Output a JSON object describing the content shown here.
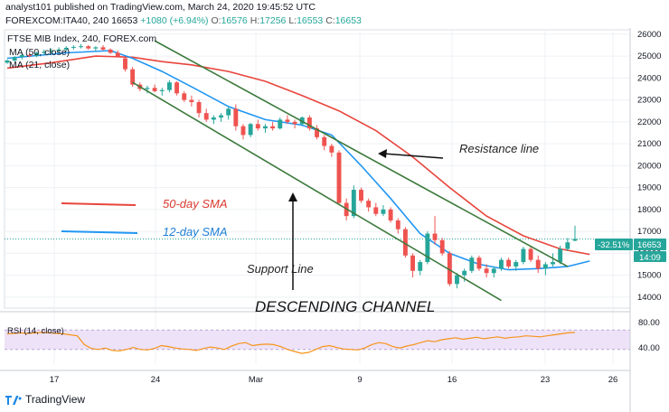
{
  "header": {
    "line1": "analyst101 published on TradingView.com, March 24, 2020 19:45:52 UTC",
    "symbol": "FOREXCOM:ITA40, 240",
    "price": "16653",
    "change": "+1080 (+6.94%)",
    "o_label": "O:",
    "o_value": "16576",
    "h_label": "H:",
    "h_value": "17256",
    "l_label": "L:",
    "l_value": "16553",
    "c_label": "C:",
    "c_value": "16653"
  },
  "legend": {
    "title": "FTSE MIB Index, 240, FOREX.com",
    "ma1": "MA (50, close)",
    "ma2": "MA (21, close)"
  },
  "annotations": {
    "resistance": "Resistance line",
    "support": "Support Line",
    "sma50": "50-day SMA",
    "sma12": "12-day SMA",
    "channel": "DESCENDING CHANNEL"
  },
  "price_tags": {
    "pct": "-32.51%",
    "last": "16653",
    "timer": "14:09"
  },
  "rsi": {
    "label": "RSI (14, close)",
    "ticks": [
      "80.00",
      "40.00"
    ]
  },
  "footer": {
    "brand": "TradingView"
  },
  "colors": {
    "up": "#26a69a",
    "down": "#ef5350",
    "ma50": "#e8453c",
    "ma21": "#2196f3",
    "channel": "#3d7a3d",
    "rsi_line": "#f7931a",
    "rsi_band": "#ede2f7"
  },
  "chart_data": {
    "type": "candlestick",
    "title": "FTSE MIB Index, 240, FOREX.com",
    "y_ticks": [
      14000,
      15000,
      16000,
      17000,
      18000,
      19000,
      20000,
      21000,
      22000,
      23000,
      24000,
      25000,
      26000
    ],
    "ylim": [
      13500,
      26200
    ],
    "x_ticks": [
      "17",
      "24",
      "Mar",
      "9",
      "16",
      "23",
      "26"
    ],
    "last_price": 16653,
    "candles": [
      [
        24700,
        24850,
        24650,
        24800
      ],
      [
        24800,
        25000,
        24750,
        24950
      ],
      [
        24950,
        25100,
        24850,
        25050
      ],
      [
        25050,
        25150,
        24950,
        25000
      ],
      [
        25000,
        25200,
        24950,
        25150
      ],
      [
        25150,
        25300,
        25050,
        25200
      ],
      [
        25200,
        25350,
        25100,
        25250
      ],
      [
        25250,
        25400,
        25150,
        25300
      ],
      [
        25300,
        25450,
        25200,
        25380
      ],
      [
        25380,
        25500,
        25300,
        25420
      ],
      [
        25420,
        25550,
        25350,
        25450
      ],
      [
        25450,
        25500,
        25300,
        25350
      ],
      [
        25350,
        25450,
        25200,
        25400
      ],
      [
        25400,
        25500,
        25250,
        25300
      ],
      [
        25300,
        25350,
        25100,
        25150
      ],
      [
        25150,
        25250,
        24950,
        25000
      ],
      [
        24900,
        24950,
        24300,
        24400
      ],
      [
        24400,
        24500,
        23600,
        23700
      ],
      [
        23700,
        23800,
        23400,
        23500
      ],
      [
        23500,
        23650,
        23300,
        23550
      ],
      [
        23550,
        23700,
        23350,
        23400
      ],
      [
        23400,
        23550,
        23200,
        23450
      ],
      [
        23450,
        23900,
        23350,
        23800
      ],
      [
        23800,
        23850,
        23200,
        23300
      ],
      [
        23300,
        23400,
        22900,
        23000
      ],
      [
        23000,
        23200,
        22700,
        22900
      ],
      [
        22900,
        23000,
        22200,
        22400
      ],
      [
        22400,
        22600,
        22000,
        22100
      ],
      [
        22100,
        22300,
        21900,
        22200
      ],
      [
        22200,
        22400,
        22000,
        22300
      ],
      [
        22300,
        22700,
        22100,
        22600
      ],
      [
        22600,
        22800,
        21600,
        21800
      ],
      [
        21800,
        21900,
        21200,
        21400
      ],
      [
        21400,
        21950,
        21300,
        21900
      ],
      [
        21900,
        22100,
        21600,
        21700
      ],
      [
        21700,
        21900,
        21500,
        21800
      ],
      [
        21800,
        22000,
        21600,
        21700
      ],
      [
        21700,
        22200,
        21650,
        22100
      ],
      [
        22100,
        22300,
        21900,
        22000
      ],
      [
        22000,
        22100,
        21700,
        21900
      ],
      [
        21900,
        22250,
        21800,
        22200
      ],
      [
        22200,
        22300,
        21600,
        21700
      ],
      [
        21700,
        21850,
        21200,
        21300
      ],
      [
        21300,
        21400,
        20700,
        20900
      ],
      [
        20900,
        21000,
        20400,
        20600
      ],
      [
        20600,
        20700,
        18200,
        18300
      ],
      [
        18300,
        18500,
        17500,
        17700
      ],
      [
        17700,
        19100,
        17600,
        18900
      ],
      [
        18900,
        19000,
        18300,
        18400
      ],
      [
        18400,
        18500,
        17900,
        18100
      ],
      [
        18100,
        18300,
        17700,
        17800
      ],
      [
        17800,
        18200,
        17700,
        18000
      ],
      [
        18000,
        18100,
        17400,
        17500
      ],
      [
        17500,
        17600,
        16900,
        17100
      ],
      [
        17100,
        17200,
        15800,
        15900
      ],
      [
        15900,
        16000,
        14900,
        15200
      ],
      [
        15200,
        15700,
        15000,
        15600
      ],
      [
        15600,
        17000,
        15500,
        16900
      ],
      [
        16900,
        17700,
        16400,
        16600
      ],
      [
        16600,
        16700,
        15900,
        16000
      ],
      [
        16000,
        16100,
        14500,
        14600
      ],
      [
        14600,
        15100,
        14400,
        15000
      ],
      [
        15000,
        15300,
        14700,
        15200
      ],
      [
        15200,
        15900,
        15100,
        15800
      ],
      [
        15800,
        15900,
        15200,
        15300
      ],
      [
        15300,
        15500,
        14900,
        15100
      ],
      [
        15100,
        15400,
        14900,
        15300
      ],
      [
        15300,
        15800,
        15200,
        15700
      ],
      [
        15700,
        15800,
        15300,
        15400
      ],
      [
        15400,
        15700,
        15200,
        15600
      ],
      [
        15600,
        16300,
        15500,
        16200
      ],
      [
        16200,
        16300,
        15600,
        15700
      ],
      [
        15700,
        15900,
        15100,
        15300
      ],
      [
        15300,
        15600,
        15000,
        15500
      ],
      [
        15500,
        16000,
        15400,
        15600
      ],
      [
        15600,
        16350,
        15500,
        16200
      ],
      [
        16200,
        16700,
        16100,
        16500
      ],
      [
        16576,
        17256,
        16553,
        16653
      ]
    ],
    "sma50": [
      [
        0,
        24450
      ],
      [
        6,
        24700
      ],
      [
        12,
        25000
      ],
      [
        17,
        24950
      ],
      [
        21,
        24750
      ],
      [
        25,
        24600
      ],
      [
        30,
        24300
      ],
      [
        35,
        23850
      ],
      [
        40,
        23200
      ],
      [
        45,
        22500
      ],
      [
        50,
        21600
      ],
      [
        55,
        20400
      ],
      [
        60,
        19000
      ],
      [
        65,
        17700
      ],
      [
        70,
        16800
      ],
      [
        75,
        16200
      ],
      [
        79,
        15950
      ]
    ],
    "sma21": [
      [
        0,
        24900
      ],
      [
        8,
        25150
      ],
      [
        14,
        25250
      ],
      [
        17,
        24900
      ],
      [
        21,
        24300
      ],
      [
        25,
        23600
      ],
      [
        30,
        22700
      ],
      [
        35,
        22100
      ],
      [
        40,
        21850
      ],
      [
        44,
        21400
      ],
      [
        48,
        20000
      ],
      [
        52,
        18500
      ],
      [
        56,
        16900
      ],
      [
        60,
        16000
      ],
      [
        64,
        15500
      ],
      [
        68,
        15250
      ],
      [
        72,
        15300
      ],
      [
        76,
        15400
      ],
      [
        79,
        15650
      ]
    ],
    "resistance_line": {
      "from": [
        20,
        25700
      ],
      "to": [
        76,
        15400
      ]
    },
    "support_line": {
      "from": [
        17,
        23800
      ],
      "to": [
        67,
        13850
      ]
    },
    "rsi_values": [
      62,
      63,
      64,
      63,
      64,
      65,
      64,
      63,
      62,
      60,
      58,
      40,
      32,
      30,
      33,
      28,
      27,
      30,
      34,
      30,
      29,
      32,
      38,
      36,
      33,
      31,
      30,
      28,
      32,
      35,
      33,
      30,
      37,
      42,
      44,
      38,
      40,
      41,
      40,
      36,
      30,
      26,
      22,
      24,
      30,
      36,
      38,
      34,
      31,
      30,
      29,
      33,
      40,
      44,
      42,
      36,
      33,
      37,
      40,
      44,
      48,
      46,
      50,
      52,
      54,
      51,
      53,
      55,
      52,
      54,
      56,
      53,
      55,
      56,
      58,
      57,
      56,
      58,
      60,
      62,
      64,
      65
    ],
    "rsi_ylim": [
      0,
      100
    ]
  }
}
